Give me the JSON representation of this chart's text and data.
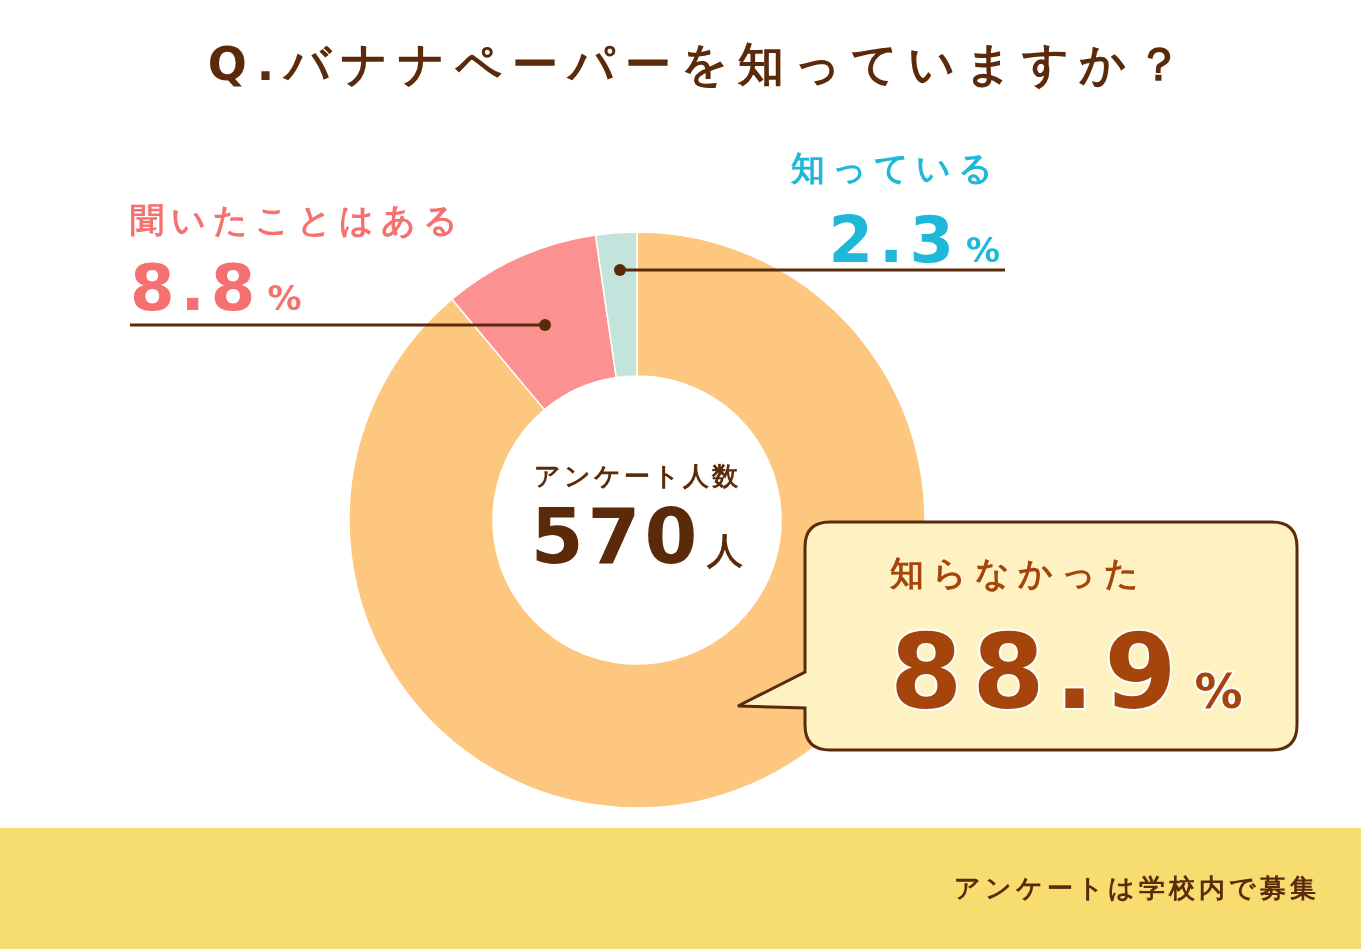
{
  "chart_data": {
    "type": "donut",
    "title": "Q.バナナペーパーを知っていますか？",
    "categories": [
      "知らなかった",
      "聞いたことはある",
      "知っている"
    ],
    "values": [
      88.9,
      8.8,
      2.3
    ],
    "colors": [
      "#fdc77f",
      "#fc9191",
      "#c2e4dc"
    ],
    "value_labels": [
      "88.9%",
      "8.8%",
      "2.3%"
    ],
    "annotations": [
      "アンケート人数",
      "570人",
      "アンケートは学校内で募集"
    ]
  }
}
